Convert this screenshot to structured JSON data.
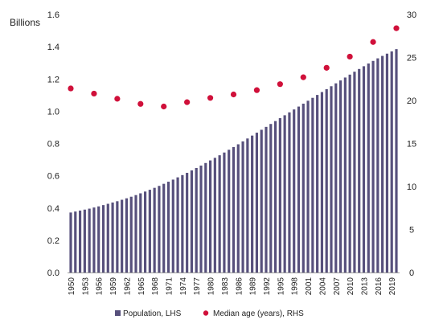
{
  "chart_data": {
    "type": "bar",
    "left_axis_unit": "Billions",
    "x": [
      1950,
      1951,
      1952,
      1953,
      1954,
      1955,
      1956,
      1957,
      1958,
      1959,
      1960,
      1961,
      1962,
      1963,
      1964,
      1965,
      1966,
      1967,
      1968,
      1969,
      1970,
      1971,
      1972,
      1973,
      1974,
      1975,
      1976,
      1977,
      1978,
      1979,
      1980,
      1981,
      1982,
      1983,
      1984,
      1985,
      1986,
      1987,
      1988,
      1989,
      1990,
      1991,
      1992,
      1993,
      1994,
      1995,
      1996,
      1997,
      1998,
      1999,
      2000,
      2001,
      2002,
      2003,
      2004,
      2005,
      2006,
      2007,
      2008,
      2009,
      2010,
      2011,
      2012,
      2013,
      2014,
      2015,
      2016,
      2017,
      2018,
      2019,
      2020
    ],
    "x_tick_labels": [
      "1950",
      "1953",
      "1956",
      "1959",
      "1962",
      "1965",
      "1968",
      "1971",
      "1974",
      "1977",
      "1980",
      "1983",
      "1986",
      "1989",
      "1992",
      "1995",
      "1998",
      "2001",
      "2004",
      "2007",
      "2010",
      "2013",
      "2016",
      "2019"
    ],
    "y_left_ticks": [
      "0.0",
      "0.2",
      "0.4",
      "0.6",
      "0.8",
      "1.0",
      "1.2",
      "1.4",
      "1.6"
    ],
    "y_right_ticks": [
      "0",
      "5",
      "10",
      "15",
      "20",
      "25",
      "30"
    ],
    "y_left_lim": [
      0,
      1.6
    ],
    "y_right_lim": [
      0,
      30
    ],
    "grid": false,
    "legend_position": "bottom",
    "series": [
      {
        "name": "Population, LHS",
        "type": "bar",
        "axis": "left",
        "color": "#57507c",
        "values": [
          0.372,
          0.378,
          0.384,
          0.39,
          0.396,
          0.403,
          0.41,
          0.418,
          0.426,
          0.434,
          0.442,
          0.451,
          0.46,
          0.47,
          0.48,
          0.491,
          0.502,
          0.513,
          0.525,
          0.537,
          0.55,
          0.563,
          0.576,
          0.59,
          0.604,
          0.618,
          0.633,
          0.648,
          0.663,
          0.679,
          0.695,
          0.711,
          0.727,
          0.744,
          0.761,
          0.778,
          0.795,
          0.813,
          0.831,
          0.849,
          0.867,
          0.885,
          0.903,
          0.921,
          0.939,
          0.957,
          0.975,
          0.993,
          1.011,
          1.029,
          1.047,
          1.065,
          1.083,
          1.101,
          1.119,
          1.137,
          1.155,
          1.173,
          1.191,
          1.209,
          1.227,
          1.245,
          1.262,
          1.279,
          1.296,
          1.312,
          1.328,
          1.343,
          1.357,
          1.371,
          1.385
        ]
      },
      {
        "name": "Median age (years), RHS",
        "type": "scatter",
        "axis": "right",
        "color": "#d0103a",
        "x": [
          1950,
          1955,
          1960,
          1965,
          1970,
          1975,
          1980,
          1985,
          1990,
          1995,
          2000,
          2005,
          2010,
          2015,
          2020
        ],
        "values": [
          21.4,
          20.8,
          20.2,
          19.6,
          19.3,
          19.8,
          20.3,
          20.7,
          21.2,
          21.9,
          22.7,
          23.8,
          25.1,
          26.8,
          28.4
        ]
      }
    ]
  }
}
